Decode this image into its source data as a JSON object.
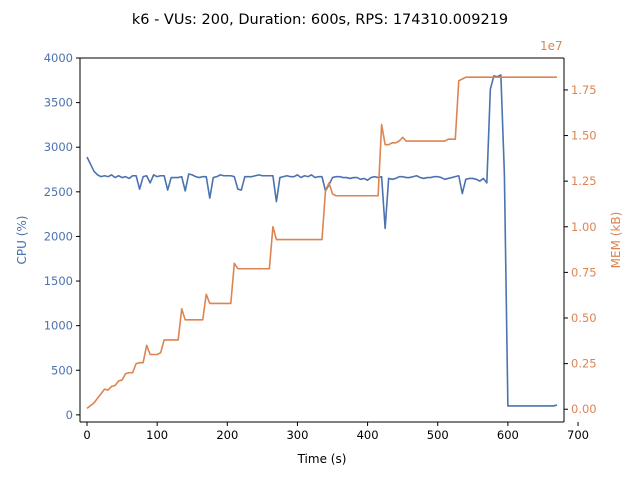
{
  "chart_data": {
    "type": "line",
    "title": "k6 - VUs: 200, Duration: 600s, RPS: 174310.009219",
    "xlabel": "Time (s)",
    "ylabel_left": "CPU (%)",
    "ylabel_right": "MEM (kB)",
    "right_axis_multiplier": "1e7",
    "xlim": [
      -10,
      680
    ],
    "ylim_left": [
      -80,
      4000
    ],
    "ylim_right": [
      -700000,
      19250000
    ],
    "x_ticks": [
      0,
      100,
      200,
      300,
      400,
      500,
      600,
      700
    ],
    "x_tick_labels": [
      "0",
      "100",
      "200",
      "300",
      "400",
      "500",
      "600",
      "700"
    ],
    "y_left_ticks": [
      0,
      500,
      1000,
      1500,
      2000,
      2500,
      3000,
      3500,
      4000
    ],
    "y_left_tick_labels": [
      "0",
      "500",
      "1000",
      "1500",
      "2000",
      "2500",
      "3000",
      "3500",
      "4000"
    ],
    "y_right_ticks": [
      0,
      2500000,
      5000000,
      7500000,
      10000000,
      12500000,
      15000000,
      17500000
    ],
    "y_right_tick_labels": [
      "0.00",
      "0.25",
      "0.50",
      "0.75",
      "1.00",
      "1.25",
      "1.50",
      "1.75"
    ],
    "grid": false,
    "colors": {
      "cpu": "#4c72b0",
      "mem": "#dd8452",
      "axes": "#000000"
    },
    "series": [
      {
        "name": "CPU (%)",
        "axis": "left",
        "x": [
          0,
          5,
          10,
          15,
          20,
          25,
          30,
          35,
          40,
          45,
          50,
          55,
          60,
          65,
          70,
          75,
          80,
          85,
          90,
          95,
          100,
          105,
          110,
          115,
          120,
          125,
          130,
          135,
          140,
          145,
          150,
          155,
          160,
          165,
          170,
          175,
          180,
          185,
          190,
          195,
          200,
          205,
          210,
          215,
          220,
          225,
          230,
          235,
          240,
          245,
          250,
          255,
          260,
          265,
          270,
          275,
          280,
          285,
          290,
          295,
          300,
          305,
          310,
          315,
          320,
          325,
          330,
          335,
          340,
          345,
          350,
          355,
          360,
          365,
          370,
          375,
          380,
          385,
          390,
          395,
          400,
          405,
          410,
          415,
          420,
          425,
          430,
          435,
          440,
          445,
          450,
          455,
          460,
          465,
          470,
          475,
          480,
          485,
          490,
          495,
          500,
          505,
          510,
          515,
          520,
          525,
          530,
          535,
          540,
          545,
          550,
          555,
          560,
          565,
          570,
          575,
          580,
          585,
          590,
          595,
          600,
          605,
          610,
          615,
          620,
          625,
          630,
          635,
          640,
          645,
          650,
          655,
          660,
          665,
          670
        ],
        "y": [
          2890,
          2810,
          2730,
          2690,
          2670,
          2680,
          2670,
          2690,
          2660,
          2680,
          2660,
          2670,
          2650,
          2680,
          2680,
          2530,
          2670,
          2680,
          2600,
          2690,
          2670,
          2680,
          2680,
          2520,
          2660,
          2660,
          2660,
          2670,
          2510,
          2700,
          2690,
          2670,
          2660,
          2670,
          2670,
          2430,
          2660,
          2670,
          2690,
          2680,
          2680,
          2680,
          2670,
          2530,
          2520,
          2670,
          2670,
          2670,
          2680,
          2690,
          2680,
          2680,
          2680,
          2680,
          2390,
          2660,
          2670,
          2680,
          2670,
          2670,
          2690,
          2660,
          2680,
          2670,
          2690,
          2660,
          2670,
          2670,
          2510,
          2580,
          2660,
          2670,
          2670,
          2660,
          2660,
          2650,
          2660,
          2660,
          2640,
          2650,
          2630,
          2660,
          2670,
          2660,
          2670,
          2090,
          2650,
          2640,
          2650,
          2670,
          2670,
          2660,
          2660,
          2670,
          2680,
          2660,
          2650,
          2660,
          2660,
          2670,
          2670,
          2660,
          2640,
          2650,
          2660,
          2670,
          2680,
          2480,
          2640,
          2650,
          2650,
          2640,
          2620,
          2650,
          2600,
          3650,
          3800,
          3790,
          3810,
          2700,
          100,
          100,
          100,
          100,
          100,
          100,
          100,
          100,
          100,
          100,
          100,
          100,
          100,
          100,
          110
        ]
      },
      {
        "name": "MEM (kB)",
        "axis": "right",
        "x": [
          0,
          5,
          10,
          15,
          20,
          25,
          30,
          35,
          40,
          45,
          50,
          55,
          60,
          65,
          70,
          75,
          80,
          85,
          90,
          95,
          100,
          105,
          110,
          115,
          120,
          125,
          130,
          135,
          140,
          145,
          150,
          155,
          160,
          165,
          170,
          175,
          180,
          185,
          190,
          195,
          200,
          205,
          210,
          215,
          220,
          225,
          230,
          235,
          240,
          245,
          250,
          255,
          260,
          265,
          270,
          275,
          280,
          285,
          290,
          295,
          300,
          305,
          310,
          315,
          320,
          325,
          330,
          335,
          340,
          345,
          350,
          355,
          360,
          365,
          370,
          375,
          380,
          385,
          390,
          395,
          400,
          405,
          410,
          415,
          420,
          425,
          430,
          435,
          440,
          445,
          450,
          455,
          460,
          465,
          470,
          475,
          480,
          485,
          490,
          495,
          500,
          505,
          510,
          515,
          520,
          525,
          530,
          535,
          540,
          545,
          550,
          555,
          560,
          565,
          570,
          575,
          580,
          585,
          590,
          595,
          600,
          605,
          610,
          615,
          620,
          625,
          630,
          635,
          640,
          645,
          650,
          655,
          660,
          665,
          670
        ],
        "y": [
          50000,
          200000,
          350000,
          600000,
          850000,
          1100000,
          1050000,
          1250000,
          1300000,
          1550000,
          1600000,
          1950000,
          2000000,
          2000000,
          2500000,
          2550000,
          2550000,
          3500000,
          3000000,
          3000000,
          3000000,
          3100000,
          3800000,
          3800000,
          3800000,
          3800000,
          3800000,
          5500000,
          4900000,
          4900000,
          4900000,
          4900000,
          4900000,
          4900000,
          6300000,
          5800000,
          5800000,
          5800000,
          5800000,
          5800000,
          5800000,
          5800000,
          8000000,
          7700000,
          7700000,
          7700000,
          7700000,
          7700000,
          7700000,
          7700000,
          7700000,
          7700000,
          7700000,
          10000000,
          9300000,
          9300000,
          9300000,
          9300000,
          9300000,
          9300000,
          9300000,
          9300000,
          9300000,
          9300000,
          9300000,
          9300000,
          9300000,
          9300000,
          12000000,
          12400000,
          11800000,
          11700000,
          11700000,
          11700000,
          11700000,
          11700000,
          11700000,
          11700000,
          11700000,
          11700000,
          11700000,
          11700000,
          11700000,
          11700000,
          15600000,
          14500000,
          14500000,
          14600000,
          14600000,
          14700000,
          14900000,
          14700000,
          14700000,
          14700000,
          14700000,
          14700000,
          14700000,
          14700000,
          14700000,
          14700000,
          14700000,
          14700000,
          14700000,
          14800000,
          14800000,
          14800000,
          18000000,
          18100000,
          18200000,
          18200000,
          18200000,
          18200000,
          18200000,
          18200000,
          18200000,
          18200000,
          18200000,
          18200000,
          18200000,
          18200000,
          18200000,
          18200000,
          18200000,
          18200000,
          18200000,
          18200000,
          18200000,
          18200000,
          18200000,
          18200000,
          18200000,
          18200000,
          18200000,
          18200000,
          18200000
        ]
      }
    ]
  }
}
